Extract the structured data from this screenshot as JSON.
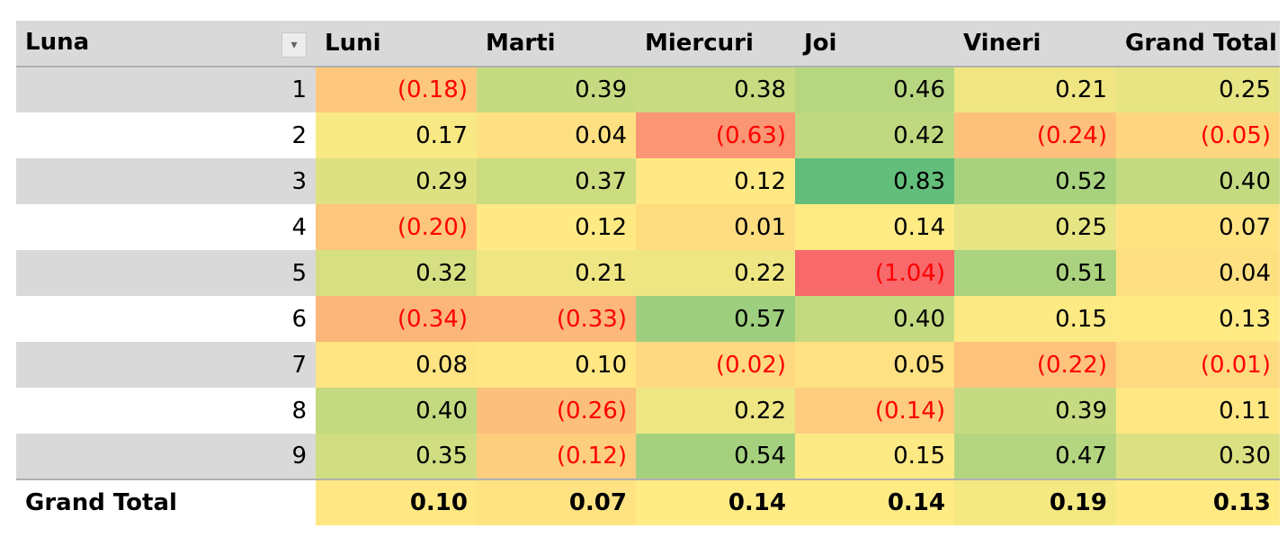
{
  "chart_data": {
    "type": "heatmap",
    "row_header": "Luna",
    "columns": [
      "Luni",
      "Marti",
      "Miercuri",
      "Joi",
      "Vineri",
      "Grand Total"
    ],
    "rows": [
      {
        "label": "1",
        "values": [
          -0.18,
          0.39,
          0.38,
          0.46,
          0.21,
          0.25
        ]
      },
      {
        "label": "2",
        "values": [
          0.17,
          0.04,
          -0.63,
          0.42,
          -0.24,
          -0.05
        ]
      },
      {
        "label": "3",
        "values": [
          0.29,
          0.37,
          0.12,
          0.83,
          0.52,
          0.4
        ]
      },
      {
        "label": "4",
        "values": [
          -0.2,
          0.12,
          0.01,
          0.14,
          0.25,
          0.07
        ]
      },
      {
        "label": "5",
        "values": [
          0.32,
          0.21,
          0.22,
          -1.04,
          0.51,
          0.04
        ]
      },
      {
        "label": "6",
        "values": [
          -0.34,
          -0.33,
          0.57,
          0.4,
          0.15,
          0.13
        ]
      },
      {
        "label": "7",
        "values": [
          0.08,
          0.1,
          -0.02,
          0.05,
          -0.22,
          -0.01
        ]
      },
      {
        "label": "8",
        "values": [
          0.4,
          -0.26,
          0.22,
          -0.14,
          0.39,
          0.11
        ]
      },
      {
        "label": "9",
        "values": [
          0.35,
          -0.12,
          0.54,
          0.15,
          0.47,
          0.3
        ]
      }
    ],
    "total": {
      "label": "Grand Total",
      "values": [
        0.1,
        0.07,
        0.14,
        0.14,
        0.19,
        0.13
      ]
    },
    "color_scale": {
      "low": "#f8696b",
      "mid": "#ffeb84",
      "high": "#63be7b"
    },
    "negative_text_color": "#ff0000",
    "number_format": "two decimals, negatives in parentheses"
  },
  "filter_icon": "dropdown-arrow-icon"
}
